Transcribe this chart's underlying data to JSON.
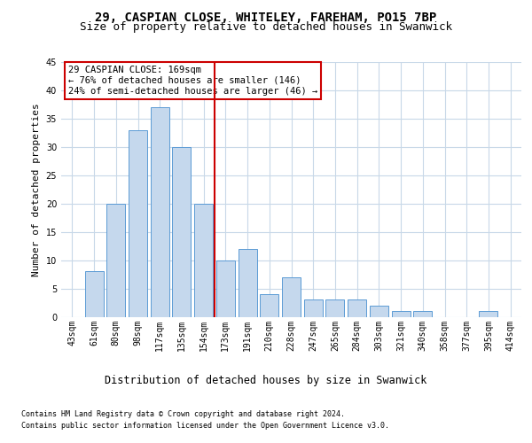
{
  "title1": "29, CASPIAN CLOSE, WHITELEY, FAREHAM, PO15 7BP",
  "title2": "Size of property relative to detached houses in Swanwick",
  "xlabel": "Distribution of detached houses by size in Swanwick",
  "ylabel": "Number of detached properties",
  "categories": [
    "43sqm",
    "61sqm",
    "80sqm",
    "98sqm",
    "117sqm",
    "135sqm",
    "154sqm",
    "173sqm",
    "191sqm",
    "210sqm",
    "228sqm",
    "247sqm",
    "265sqm",
    "284sqm",
    "303sqm",
    "321sqm",
    "340sqm",
    "358sqm",
    "377sqm",
    "395sqm",
    "414sqm"
  ],
  "values": [
    0,
    8,
    20,
    33,
    37,
    30,
    20,
    10,
    12,
    4,
    7,
    3,
    3,
    3,
    2,
    1,
    1,
    0,
    0,
    1,
    0
  ],
  "bar_color": "#c5d8ed",
  "bar_edgecolor": "#5b9bd5",
  "vline_color": "#cc0000",
  "annotation_text": "29 CASPIAN CLOSE: 169sqm\n← 76% of detached houses are smaller (146)\n24% of semi-detached houses are larger (46) →",
  "annotation_box_edgecolor": "#cc0000",
  "ylim": [
    0,
    45
  ],
  "yticks": [
    0,
    5,
    10,
    15,
    20,
    25,
    30,
    35,
    40,
    45
  ],
  "footer1": "Contains HM Land Registry data © Crown copyright and database right 2024.",
  "footer2": "Contains public sector information licensed under the Open Government Licence v3.0.",
  "bg_color": "#ffffff",
  "grid_color": "#c8d8e8",
  "title1_fontsize": 10,
  "title2_fontsize": 9,
  "tick_fontsize": 7,
  "ylabel_fontsize": 8,
  "xlabel_fontsize": 8.5,
  "annotation_fontsize": 7.5,
  "footer_fontsize": 6
}
